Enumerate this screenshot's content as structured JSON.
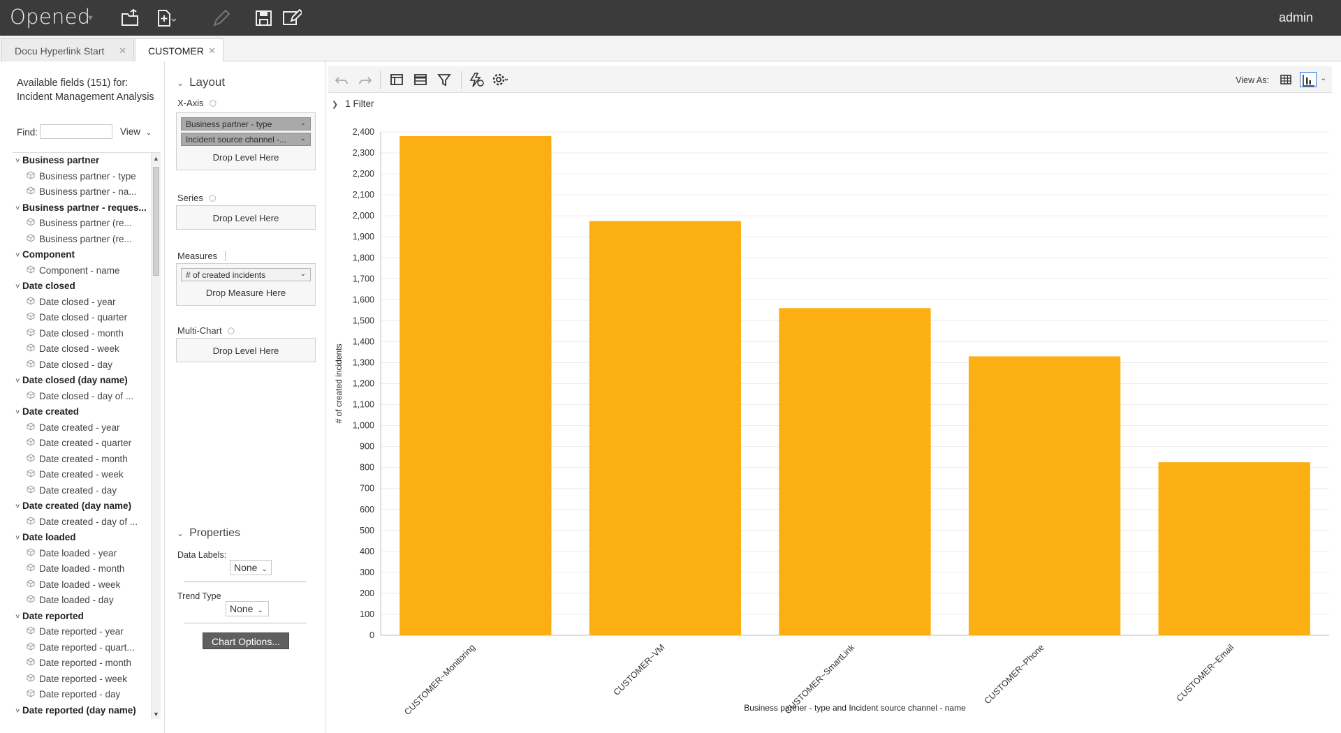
{
  "app": {
    "title": "Opened",
    "user": "admin"
  },
  "tabs": [
    {
      "label": "Docu Hyperlink Start",
      "active": false
    },
    {
      "label": "CUSTOMER",
      "active": true
    }
  ],
  "fields_panel": {
    "title": "Available fields (151) for: Incident Management Analysis",
    "find_label": "Find:",
    "find_value": "",
    "view_label": "View",
    "tree": [
      {
        "type": "group",
        "label": "Business partner"
      },
      {
        "type": "field",
        "label": "Business partner - type"
      },
      {
        "type": "field",
        "label": "Business partner - na..."
      },
      {
        "type": "group",
        "label": "Business partner - reques..."
      },
      {
        "type": "field",
        "label": "Business partner (re..."
      },
      {
        "type": "field",
        "label": "Business partner (re..."
      },
      {
        "type": "group",
        "label": "Component"
      },
      {
        "type": "field",
        "label": "Component - name"
      },
      {
        "type": "group",
        "label": "Date closed"
      },
      {
        "type": "field",
        "label": "Date closed - year"
      },
      {
        "type": "field",
        "label": "Date closed - quarter"
      },
      {
        "type": "field",
        "label": "Date closed - month"
      },
      {
        "type": "field",
        "label": "Date closed - week"
      },
      {
        "type": "field",
        "label": "Date closed - day"
      },
      {
        "type": "group",
        "label": "Date closed (day name)"
      },
      {
        "type": "field",
        "label": "Date closed - day of ..."
      },
      {
        "type": "group",
        "label": "Date created"
      },
      {
        "type": "field",
        "label": "Date created - year"
      },
      {
        "type": "field",
        "label": "Date created - quarter"
      },
      {
        "type": "field",
        "label": "Date created - month"
      },
      {
        "type": "field",
        "label": "Date created - week"
      },
      {
        "type": "field",
        "label": "Date created - day"
      },
      {
        "type": "group",
        "label": "Date created (day name)"
      },
      {
        "type": "field",
        "label": "Date created - day of ..."
      },
      {
        "type": "group",
        "label": "Date loaded"
      },
      {
        "type": "field",
        "label": "Date loaded - year"
      },
      {
        "type": "field",
        "label": "Date loaded - month"
      },
      {
        "type": "field",
        "label": "Date loaded - week"
      },
      {
        "type": "field",
        "label": "Date loaded - day"
      },
      {
        "type": "group",
        "label": "Date reported"
      },
      {
        "type": "field",
        "label": "Date reported - year"
      },
      {
        "type": "field",
        "label": "Date reported - quart..."
      },
      {
        "type": "field",
        "label": "Date reported - month"
      },
      {
        "type": "field",
        "label": "Date reported - week"
      },
      {
        "type": "field",
        "label": "Date reported - day"
      },
      {
        "type": "group",
        "label": "Date reported (day name)"
      }
    ]
  },
  "layout_panel": {
    "layout_title": "Layout",
    "x_axis_label": "X-Axis",
    "x_axis_levels": [
      "Business partner - type",
      "Incident source channel -..."
    ],
    "drop_level": "Drop Level Here",
    "series_label": "Series",
    "measures_label": "Measures",
    "measure": "# of created incidents",
    "drop_measure": "Drop Measure Here",
    "multichart_label": "Multi-Chart",
    "properties_title": "Properties",
    "data_labels_label": "Data Labels:",
    "data_labels_value": "None",
    "trend_type_label": "Trend Type",
    "trend_type_value": "None",
    "chart_options_button": "Chart Options..."
  },
  "chart_toolbar": {
    "icons": [
      "undo-icon",
      "redo-icon",
      "layout-panel-icon",
      "table-icon",
      "filter-icon",
      "auto-refresh-icon",
      "settings-icon"
    ],
    "view_as_label": "View As:",
    "filter_summary": "1 Filter"
  },
  "colors": {
    "bar": "#FCAF12",
    "topbar": "#3b3b3b"
  },
  "chart_data": {
    "type": "bar",
    "categories": [
      "CUSTOMER~Monitoring",
      "CUSTOMER~VM",
      "CUSTOMER~SmartLink",
      "CUSTOMER~Phone",
      "CUSTOMER~Email"
    ],
    "values": [
      2380,
      1975,
      1560,
      1330,
      825
    ],
    "xlabel": "Business partner - type and Incident source channel - name",
    "ylabel": "# of created incidents",
    "ylim": [
      0,
      2400
    ],
    "yticks": [
      0,
      100,
      200,
      300,
      400,
      500,
      600,
      700,
      800,
      900,
      1000,
      1100,
      1200,
      1300,
      1400,
      1500,
      1600,
      1700,
      1800,
      1900,
      2000,
      2100,
      2200,
      2300,
      2400
    ],
    "ytick_labels": [
      "0",
      "100",
      "200",
      "300",
      "400",
      "500",
      "600",
      "700",
      "800",
      "900",
      "1,000",
      "1,100",
      "1,200",
      "1,300",
      "1,400",
      "1,500",
      "1,600",
      "1,700",
      "1,800",
      "1,900",
      "2,000",
      "2,100",
      "2,200",
      "2,300",
      "2,400"
    ],
    "grid": true,
    "legend": "none"
  }
}
